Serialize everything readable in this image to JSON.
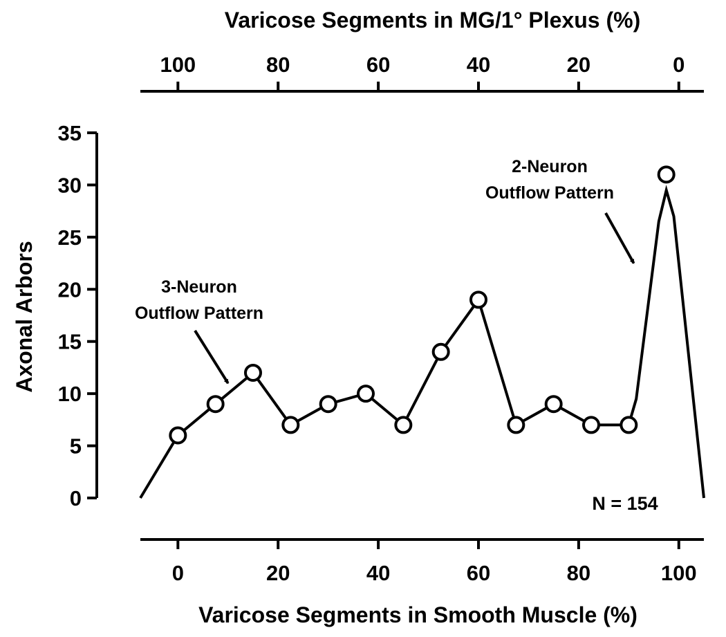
{
  "chart_data": {
    "type": "line",
    "xlabel": "Varicose Segments in Smooth Muscle (%)",
    "x2label": "Varicose Segments in MG/1° Plexus (%)",
    "ylabel": "Axonal Arbors",
    "xlim": [
      -7.5,
      105
    ],
    "ylim": [
      0,
      35
    ],
    "x_ticks": [
      "0",
      "20",
      "40",
      "60",
      "80",
      "100"
    ],
    "x2_ticks": [
      "100",
      "80",
      "60",
      "40",
      "20",
      "0"
    ],
    "y_ticks": [
      "0",
      "5",
      "10",
      "15",
      "20",
      "25",
      "30",
      "35"
    ],
    "series": [
      {
        "x": [
          0,
          7.5,
          15,
          22.5,
          30,
          37.5,
          45,
          52.5,
          60,
          67.5,
          75,
          82.5,
          90,
          97.5
        ],
        "values": [
          6,
          9,
          12,
          7,
          9,
          10,
          7,
          14,
          19,
          7,
          9,
          7,
          7,
          31
        ]
      }
    ],
    "curve": {
      "x": [
        -7.5,
        0,
        7.5,
        15,
        22.5,
        30,
        37.5,
        45,
        52.5,
        60,
        67.5,
        75,
        82.5,
        90,
        91.5,
        96,
        97.5,
        99,
        105
      ],
      "values": [
        0,
        6,
        9,
        12,
        7,
        9,
        10,
        7,
        14,
        19,
        7,
        9,
        7,
        7,
        9.5,
        26.5,
        29.5,
        27,
        0
      ]
    },
    "annotations": [
      {
        "lines": [
          "3-Neuron",
          "Outflow Pattern"
        ],
        "arrow_to": [
          10,
          11
        ]
      },
      {
        "lines": [
          "2-Neuron",
          "Outflow Pattern"
        ],
        "arrow_to": [
          91,
          22.5
        ]
      }
    ],
    "note": "N = 154"
  }
}
